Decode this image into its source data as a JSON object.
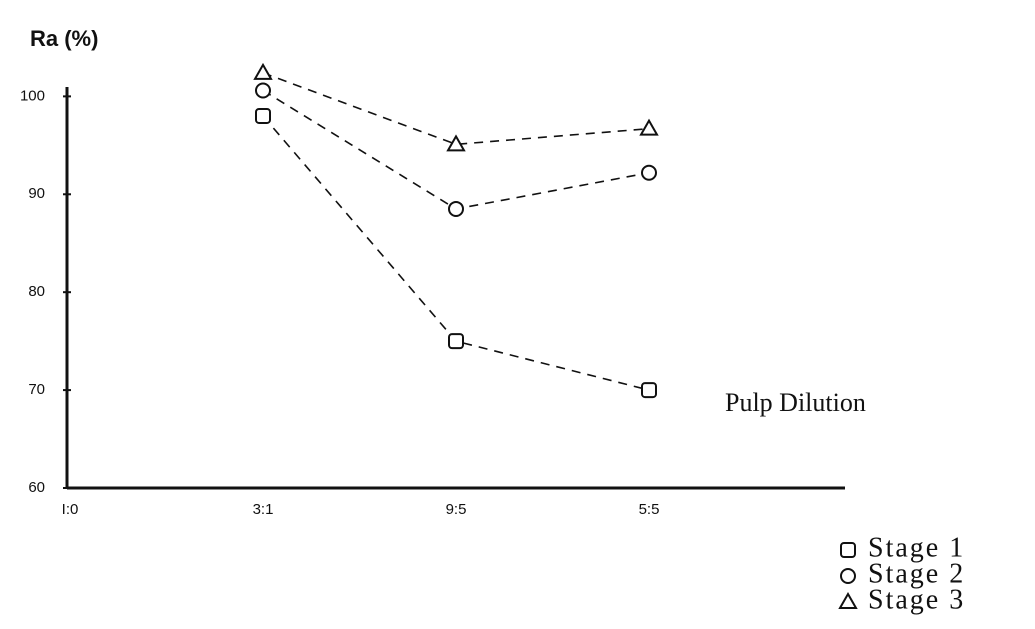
{
  "chart_data": {
    "type": "line",
    "y_label": "Ra (%)",
    "x_label": "Pulp Dilution",
    "categories": [
      "I:0",
      "3:1",
      "9:5",
      "5:5"
    ],
    "ylim": [
      60,
      103
    ],
    "yticks": [
      60,
      70,
      80,
      90,
      100
    ],
    "series": [
      {
        "name": "Stage 1",
        "marker": "square",
        "color": "#111111",
        "values": [
          null,
          98,
          75,
          70
        ]
      },
      {
        "name": "Stage 2",
        "marker": "circle",
        "color": "#111111",
        "values": [
          null,
          100.6,
          88.5,
          92.2
        ]
      },
      {
        "name": "Stage 3",
        "marker": "triangle",
        "color": "#111111",
        "values": [
          null,
          102.4,
          95.1,
          96.7
        ]
      }
    ]
  }
}
